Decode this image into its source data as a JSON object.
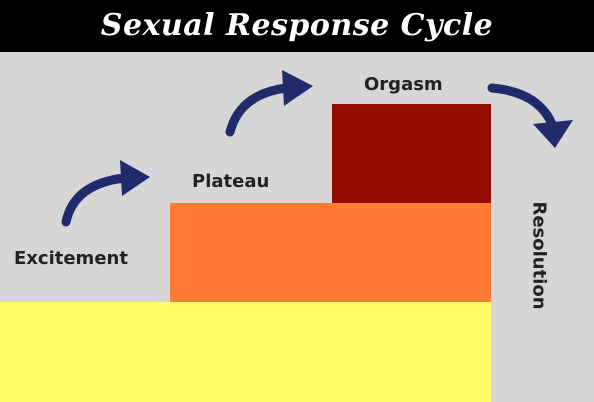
{
  "title": "Sexual Response Cycle",
  "stages": {
    "excitement": "Excitement",
    "plateau": "Plateau",
    "orgasm": "Orgasm",
    "resolution": "Resolution"
  },
  "colors": {
    "title_background": "#000000",
    "title_text": "#ffffff",
    "canvas_background": "#d6d6d6",
    "base_block": "#ffff66",
    "plateau_block": "#ff7a33",
    "orgasm_block": "#940b00",
    "arrows": "#1f2b6a",
    "label_text": "#222222"
  },
  "icons": {
    "arrow_1": "curved-arrow-right-icon",
    "arrow_2": "curved-arrow-right-icon",
    "arrow_3": "curved-arrow-down-icon"
  }
}
